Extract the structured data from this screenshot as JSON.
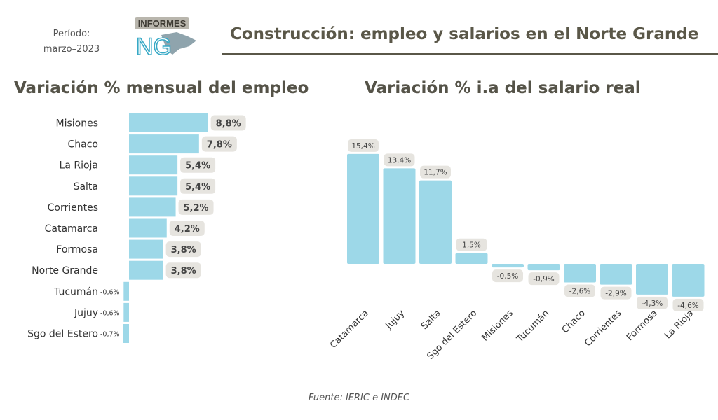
{
  "header": {
    "period_label": "Período:",
    "period_value": "marzo–2023",
    "logo_top": "INFORMES",
    "logo_main": "NG",
    "title": "Construcción: empleo y salarios en el Norte Grande"
  },
  "colors": {
    "bar": "#9dd8e8",
    "label_bg": "#e6e4df",
    "title": "#5a5748"
  },
  "source": "Fuente: IERIC e INDEC",
  "chart_data": [
    {
      "type": "bar",
      "orientation": "horizontal",
      "title": "Variación % mensual del empleo",
      "categories": [
        "Misiones",
        "Chaco",
        "La Rioja",
        "Salta",
        "Corrientes",
        "Catamarca",
        "Formosa",
        "Norte Grande",
        "Tucumán",
        "Jujuy",
        "Sgo del Estero"
      ],
      "values": [
        8.8,
        7.8,
        5.4,
        5.4,
        5.2,
        4.2,
        3.8,
        3.8,
        -0.6,
        -0.6,
        -0.7
      ],
      "labels": [
        "8,8%",
        "7,8%",
        "5,4%",
        "5,4%",
        "5,2%",
        "4,2%",
        "3,8%",
        "3,8%",
        "-0,6%",
        "-0,6%",
        "-0,7%"
      ],
      "grid": false,
      "legend": "none"
    },
    {
      "type": "bar",
      "orientation": "vertical",
      "title": "Variación % i.a del salario real",
      "categories": [
        "Catamarca",
        "Jujuy",
        "Salta",
        "Sgo del Estero",
        "Misiones",
        "Tucumán",
        "Chaco",
        "Corrientes",
        "Formosa",
        "La Rioja"
      ],
      "values": [
        15.4,
        13.4,
        11.7,
        1.5,
        -0.5,
        -0.9,
        -2.6,
        -2.9,
        -4.3,
        -4.6
      ],
      "labels": [
        "15,4%",
        "13,4%",
        "11,7%",
        "1,5%",
        "-0,5%",
        "-0,9%",
        "-2,6%",
        "-2,9%",
        "-4,3%",
        "-4,6%"
      ],
      "grid": false,
      "legend": "none"
    }
  ]
}
